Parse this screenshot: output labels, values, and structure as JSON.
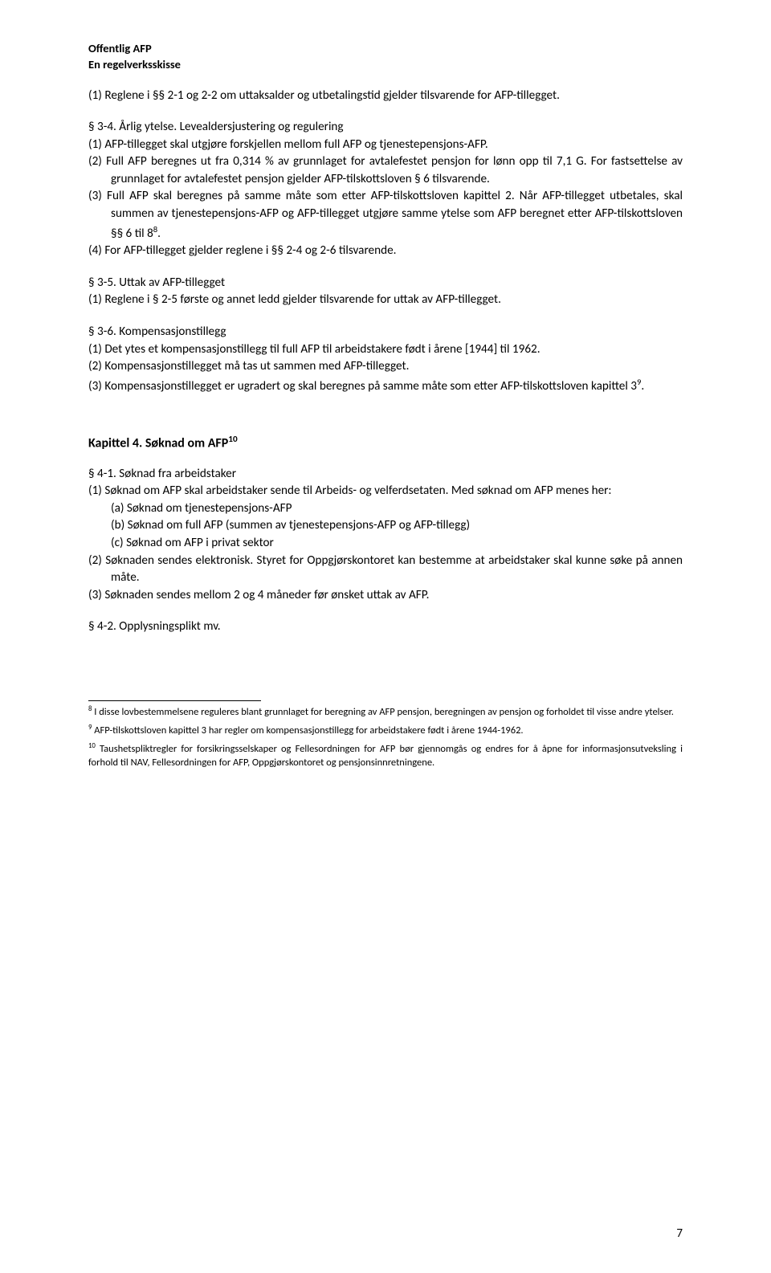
{
  "header": {
    "line1": "Offentlig AFP",
    "line2": "En regelverksskisse"
  },
  "p_intro_1": "(1) Reglene i §§ 2-1 og 2-2 om uttaksalder og utbetalingstid gjelder tilsvarende for AFP-tillegget.",
  "s34": {
    "title": "§ 3-4. Årlig ytelse. Levealdersjustering og regulering",
    "p1": "(1) AFP-tillegget skal utgjøre forskjellen mellom full AFP og tjenestepensjons-AFP.",
    "p2": "(2) Full AFP beregnes ut fra 0,314 % av grunnlaget for avtalefestet pensjon for lønn opp til 7,1 G. For fastsettelse av grunnlaget for avtalefestet pensjon gjelder AFP-tilskottsloven § 6 tilsvarende.",
    "p3a": "(3) Full AFP skal beregnes på samme måte som etter AFP-tilskottsloven kapittel 2. Når AFP-tillegget utbetales, skal summen av tjenestepensjons-AFP og AFP-tillegget utgjøre samme ytelse som AFP beregnet etter AFP-tilskottsloven §§ 6 til 8",
    "p3b": ".",
    "sup3": "8",
    "p4": "(4) For AFP-tillegget gjelder reglene i §§ 2-4 og 2-6 tilsvarende."
  },
  "s35": {
    "title": "§ 3-5. Uttak av AFP-tillegget",
    "p1": "(1) Reglene i § 2-5 første og annet ledd gjelder tilsvarende for uttak av AFP-tillegget."
  },
  "s36": {
    "title": "§ 3-6. Kompensasjonstillegg",
    "p1": "(1) Det ytes et kompensasjonstillegg til full AFP til arbeidstakere født i årene [1944] til 1962.",
    "p2": "(2) Kompensasjonstillegget må tas ut sammen med AFP-tillegget.",
    "p3a": "(3) Kompensasjonstillegget er ugradert og skal beregnes på samme måte som etter AFP-tilskottsloven kapittel 3",
    "p3b": ".",
    "sup3": "9"
  },
  "ch4": {
    "title_a": "Kapittel 4. Søknad om AFP",
    "sup": "10"
  },
  "s41": {
    "title": "§ 4-1. Søknad fra arbeidstaker",
    "p1": "(1) Søknad om AFP skal arbeidstaker sende til Arbeids- og velferdsetaten. Med søknad om AFP menes her:",
    "a": "(a) Søknad om tjenestepensjons-AFP",
    "b": "(b) Søknad om full AFP (summen av tjenestepensjons-AFP og AFP-tillegg)",
    "c": "(c) Søknad om AFP i privat sektor",
    "p2": "(2) Søknaden sendes elektronisk. Styret for Oppgjørskontoret kan bestemme at arbeidstaker skal kunne søke på annen måte.",
    "p3": "(3) Søknaden sendes mellom 2 og 4 måneder før ønsket uttak av AFP."
  },
  "s42": {
    "title": "§ 4-2. Opplysningsplikt mv."
  },
  "footnotes": {
    "f8sup": "8",
    "f8": " I disse lovbestemmelsene reguleres blant grunnlaget for beregning av AFP pensjon, beregningen av pensjon og forholdet til visse andre ytelser.",
    "f9sup": "9",
    "f9": " AFP-tilskottsloven kapittel 3 har regler om kompensasjonstillegg for arbeidstakere født i årene 1944-1962.",
    "f10sup": "10",
    "f10": " Taushetspliktregler for forsikringsselskaper og Fellesordningen for AFP bør gjennomgås og endres for å åpne for informasjonsutveksling i forhold til NAV, Fellesordningen for AFP, Oppgjørskontoret og pensjonsinnretningene."
  },
  "pagenum": "7"
}
